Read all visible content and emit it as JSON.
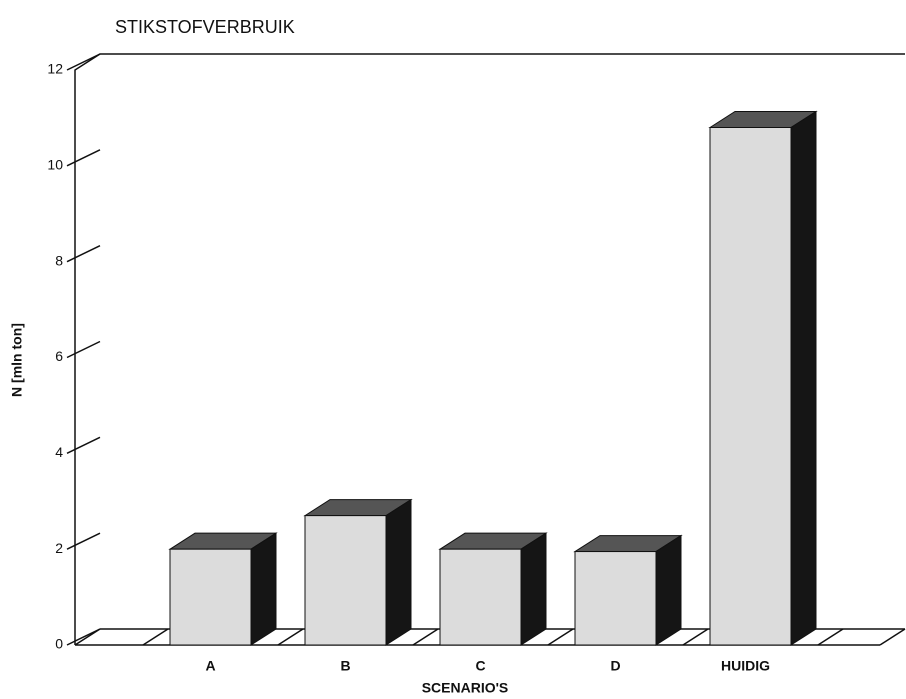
{
  "chart_data": {
    "type": "bar3d",
    "title": "STIKSTOFVERBRUIK",
    "x_label": "SCENARIO'S",
    "y_label": "N [mln ton]",
    "categories": [
      "A",
      "B",
      "C",
      "D",
      "HUIDIG"
    ],
    "values": [
      2.0,
      2.7,
      2.0,
      1.95,
      10.8
    ],
    "color": "#dcdcdc",
    "ylim": [
      0,
      12
    ],
    "yticks": [
      0,
      2,
      4,
      6,
      8,
      10,
      12
    ]
  }
}
